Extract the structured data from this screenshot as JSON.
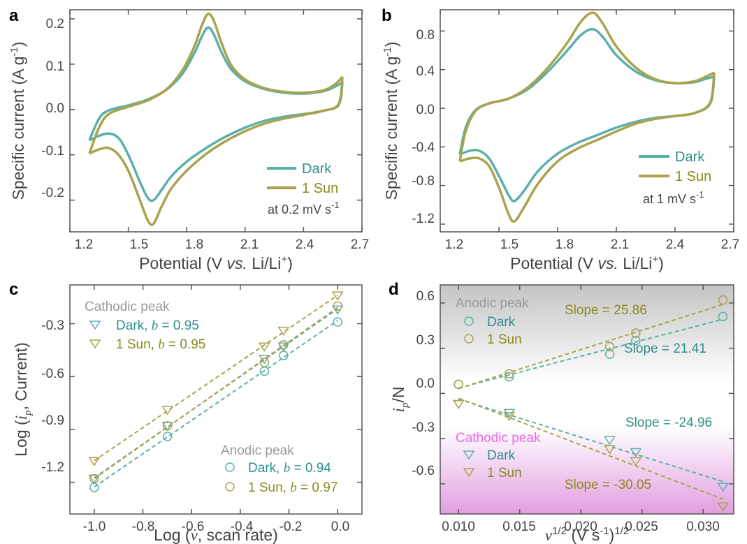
{
  "colors": {
    "dark": "#5BB0AC",
    "sun": "#ABA24D",
    "dark_text": "#2E8F8B",
    "sun_text": "#8A8A1E",
    "gray_text": "#9A9A9A",
    "magenta_text": "#E86AE8",
    "axis": "#555555"
  },
  "panels": {
    "a": {
      "label": "a",
      "xlabel_pre": "Potential (V ",
      "xlabel_it": "vs.",
      "xlabel_post": " Li/Li",
      "xlabel_sup": "+",
      "xlabel_end": ")",
      "ylabel_pre": "Specific current (A g",
      "ylabel_sup": "-1",
      "ylabel_end": ")",
      "xticks": [
        "1.2",
        "1.5",
        "1.8",
        "2.1",
        "2.4",
        "2.7"
      ],
      "yticks": [
        "0.2",
        "0.1",
        "0.0",
        "-0.1",
        "-0.2"
      ],
      "legend": [
        "Dark",
        "1 Sun"
      ],
      "note_pre": "at 0.2 mV s",
      "note_sup": "-1"
    },
    "b": {
      "label": "b",
      "xlabel_pre": "Potential (V ",
      "xlabel_it": "vs.",
      "xlabel_post": " Li/Li",
      "xlabel_sup": "+",
      "xlabel_end": ")",
      "ylabel_pre": "Specific current (A g",
      "ylabel_sup": "-1",
      "ylabel_end": ")",
      "xticks": [
        "1.2",
        "1.5",
        "1.8",
        "2.1",
        "2.4",
        "2.7"
      ],
      "yticks": [
        "0.8",
        "0.4",
        "0.0",
        "-0.4",
        "-0.8",
        "-1.2"
      ],
      "legend": [
        "Dark",
        "1 Sun"
      ],
      "note_pre": "at 1 mV s",
      "note_sup": "-1"
    },
    "c": {
      "label": "c",
      "xlabel_pre": "Log (",
      "xlabel_it": "ν",
      "xlabel_post": ", scan rate)",
      "ylabel_pre": "Log (",
      "ylabel_it": "i",
      "ylabel_sub": "p",
      "ylabel_post": ", Current)",
      "xticks": [
        "-1.0",
        "-0.8",
        "-0.6",
        "-0.4",
        "-0.2",
        "0.0"
      ],
      "yticks": [
        "-0.3",
        "-0.6",
        "-0.9",
        "-1.2"
      ],
      "cathodic_title": "Cathodic peak",
      "cathodic_dark": "Dark,",
      "cathodic_dark_b": "= 0.95",
      "cathodic_sun": "1 Sun,",
      "cathodic_sun_b": "= 0.95",
      "anodic_title": "Anodic peak",
      "anodic_dark": "Dark,",
      "anodic_dark_b": "= 0.94",
      "anodic_sun": "1 Sun,",
      "anodic_sun_b": "= 0.97",
      "b_symbol": "b"
    },
    "d": {
      "label": "d",
      "xlabel_pre": "ν",
      "xlabel_sup": "1/2",
      "xlabel_mid": " (V s",
      "xlabel_sup2": "-1",
      "xlabel_end": ")",
      "xlabel_sup3": "1/2",
      "ylabel_it": "i",
      "ylabel_sub": "p",
      "ylabel_post": "/N",
      "xticks": [
        "0.010",
        "0.015",
        "0.020",
        "0.025",
        "0.030"
      ],
      "yticks": [
        "0.6",
        "0.3",
        "0.0",
        "-0.3",
        "-0.6"
      ],
      "anodic_title": "Anodic peak",
      "cathodic_title": "Cathodic peak",
      "legend": [
        "Dark",
        "1 Sun",
        "Dark",
        "1 Sun"
      ],
      "slopes": [
        "Slope = 25.86",
        "Slope = 21.41",
        "Slope = -24.96",
        "Slope = -30.05"
      ]
    }
  },
  "chart_data": [
    {
      "panel": "a",
      "type": "line",
      "xlabel": "Potential (V vs. Li/Li+)",
      "ylabel": "Specific current (A g-1)",
      "xlim": [
        1.2,
        2.7
      ],
      "ylim": [
        -0.27,
        0.22
      ],
      "series": [
        {
          "name": "Dark",
          "upper": [
            [
              1.3,
              -0.068
            ],
            [
              1.35,
              -0.02
            ],
            [
              1.4,
              -0.002
            ],
            [
              1.5,
              0.009
            ],
            [
              1.6,
              0.022
            ],
            [
              1.7,
              0.045
            ],
            [
              1.78,
              0.08
            ],
            [
              1.84,
              0.125
            ],
            [
              1.88,
              0.163
            ],
            [
              1.91,
              0.181
            ],
            [
              1.94,
              0.165
            ],
            [
              1.98,
              0.125
            ],
            [
              2.03,
              0.088
            ],
            [
              2.1,
              0.062
            ],
            [
              2.2,
              0.045
            ],
            [
              2.3,
              0.037
            ],
            [
              2.4,
              0.035
            ],
            [
              2.5,
              0.04
            ],
            [
              2.56,
              0.05
            ],
            [
              2.6,
              0.06
            ]
          ],
          "lower": [
            [
              2.6,
              0.06
            ],
            [
              2.58,
              0.01
            ],
            [
              2.5,
              -0.003
            ],
            [
              2.4,
              -0.01
            ],
            [
              2.3,
              -0.016
            ],
            [
              2.2,
              -0.025
            ],
            [
              2.1,
              -0.04
            ],
            [
              2.0,
              -0.06
            ],
            [
              1.9,
              -0.085
            ],
            [
              1.8,
              -0.115
            ],
            [
              1.72,
              -0.148
            ],
            [
              1.67,
              -0.178
            ],
            [
              1.63,
              -0.2
            ],
            [
              1.6,
              -0.195
            ],
            [
              1.56,
              -0.16
            ],
            [
              1.5,
              -0.1
            ],
            [
              1.45,
              -0.063
            ],
            [
              1.4,
              -0.053
            ],
            [
              1.35,
              -0.058
            ],
            [
              1.3,
              -0.068
            ]
          ]
        },
        {
          "name": "1 Sun",
          "upper": [
            [
              1.3,
              -0.097
            ],
            [
              1.35,
              -0.04
            ],
            [
              1.4,
              -0.01
            ],
            [
              1.5,
              0.006
            ],
            [
              1.6,
              0.02
            ],
            [
              1.7,
              0.046
            ],
            [
              1.78,
              0.088
            ],
            [
              1.84,
              0.14
            ],
            [
              1.88,
              0.188
            ],
            [
              1.91,
              0.211
            ],
            [
              1.94,
              0.195
            ],
            [
              1.98,
              0.145
            ],
            [
              2.03,
              0.097
            ],
            [
              2.1,
              0.066
            ],
            [
              2.2,
              0.047
            ],
            [
              2.3,
              0.039
            ],
            [
              2.4,
              0.037
            ],
            [
              2.5,
              0.042
            ],
            [
              2.56,
              0.055
            ],
            [
              2.6,
              0.072
            ]
          ],
          "lower": [
            [
              2.6,
              0.072
            ],
            [
              2.58,
              0.012
            ],
            [
              2.5,
              -0.003
            ],
            [
              2.4,
              -0.012
            ],
            [
              2.3,
              -0.02
            ],
            [
              2.2,
              -0.031
            ],
            [
              2.1,
              -0.048
            ],
            [
              2.0,
              -0.07
            ],
            [
              1.9,
              -0.098
            ],
            [
              1.8,
              -0.135
            ],
            [
              1.72,
              -0.175
            ],
            [
              1.67,
              -0.215
            ],
            [
              1.63,
              -0.252
            ],
            [
              1.6,
              -0.245
            ],
            [
              1.56,
              -0.2
            ],
            [
              1.5,
              -0.135
            ],
            [
              1.45,
              -0.1
            ],
            [
              1.4,
              -0.085
            ],
            [
              1.35,
              -0.088
            ],
            [
              1.3,
              -0.097
            ]
          ]
        }
      ],
      "legend": [
        "Dark",
        "1 Sun"
      ]
    },
    {
      "panel": "b",
      "type": "line",
      "xlabel": "Potential (V vs. Li/Li+)",
      "ylabel": "Specific current (A g-1)",
      "xlim": [
        1.2,
        2.7
      ],
      "ylim": [
        -1.28,
        1.02
      ],
      "series": [
        {
          "name": "Dark",
          "upper": [
            [
              1.3,
              -0.48
            ],
            [
              1.33,
              -0.2
            ],
            [
              1.38,
              -0.02
            ],
            [
              1.45,
              0.05
            ],
            [
              1.55,
              0.1
            ],
            [
              1.65,
              0.2
            ],
            [
              1.75,
              0.38
            ],
            [
              1.85,
              0.6
            ],
            [
              1.92,
              0.76
            ],
            [
              1.98,
              0.82
            ],
            [
              2.03,
              0.74
            ],
            [
              2.1,
              0.55
            ],
            [
              2.2,
              0.38
            ],
            [
              2.3,
              0.29
            ],
            [
              2.4,
              0.26
            ],
            [
              2.5,
              0.27
            ],
            [
              2.55,
              0.3
            ],
            [
              2.6,
              0.33
            ]
          ],
          "lower": [
            [
              2.6,
              0.33
            ],
            [
              2.58,
              0.05
            ],
            [
              2.5,
              -0.05
            ],
            [
              2.4,
              -0.08
            ],
            [
              2.3,
              -0.1
            ],
            [
              2.2,
              -0.14
            ],
            [
              2.1,
              -0.2
            ],
            [
              2.0,
              -0.28
            ],
            [
              1.9,
              -0.36
            ],
            [
              1.8,
              -0.47
            ],
            [
              1.7,
              -0.65
            ],
            [
              1.63,
              -0.85
            ],
            [
              1.58,
              -0.96
            ],
            [
              1.55,
              -0.9
            ],
            [
              1.5,
              -0.7
            ],
            [
              1.45,
              -0.52
            ],
            [
              1.4,
              -0.44
            ],
            [
              1.35,
              -0.44
            ],
            [
              1.3,
              -0.48
            ]
          ]
        },
        {
          "name": "1 Sun",
          "upper": [
            [
              1.3,
              -0.55
            ],
            [
              1.33,
              -0.24
            ],
            [
              1.38,
              -0.03
            ],
            [
              1.45,
              0.05
            ],
            [
              1.55,
              0.1
            ],
            [
              1.65,
              0.22
            ],
            [
              1.75,
              0.42
            ],
            [
              1.85,
              0.68
            ],
            [
              1.92,
              0.9
            ],
            [
              1.98,
              0.99
            ],
            [
              2.03,
              0.88
            ],
            [
              2.1,
              0.64
            ],
            [
              2.2,
              0.42
            ],
            [
              2.3,
              0.3
            ],
            [
              2.4,
              0.26
            ],
            [
              2.5,
              0.28
            ],
            [
              2.55,
              0.32
            ],
            [
              2.6,
              0.37
            ]
          ],
          "lower": [
            [
              2.6,
              0.37
            ],
            [
              2.58,
              0.06
            ],
            [
              2.5,
              -0.05
            ],
            [
              2.4,
              -0.08
            ],
            [
              2.3,
              -0.11
            ],
            [
              2.2,
              -0.16
            ],
            [
              2.1,
              -0.24
            ],
            [
              2.0,
              -0.33
            ],
            [
              1.9,
              -0.42
            ],
            [
              1.8,
              -0.55
            ],
            [
              1.7,
              -0.78
            ],
            [
              1.63,
              -1.02
            ],
            [
              1.58,
              -1.17
            ],
            [
              1.55,
              -1.1
            ],
            [
              1.5,
              -0.82
            ],
            [
              1.45,
              -0.6
            ],
            [
              1.4,
              -0.52
            ],
            [
              1.35,
              -0.52
            ],
            [
              1.3,
              -0.55
            ]
          ]
        }
      ],
      "legend": [
        "Dark",
        "1 Sun"
      ]
    },
    {
      "panel": "c",
      "type": "scatter",
      "xlabel": "Log (ν, scan rate)",
      "ylabel": "Log (ip, Current)",
      "xlim": [
        -1.1,
        0.1
      ],
      "ylim": [
        -1.38,
        -0.08
      ],
      "x": [
        -1.0,
        -0.699,
        -0.301,
        -0.222,
        0.0
      ],
      "series": [
        {
          "name": "Cathodic Dark, b = 0.95",
          "marker": "triangle",
          "y": [
            -1.18,
            -0.88,
            -0.5,
            -0.43,
            -0.22
          ]
        },
        {
          "name": "Cathodic 1 Sun, b = 0.95",
          "marker": "triangle",
          "y": [
            -1.08,
            -0.79,
            -0.43,
            -0.34,
            -0.14
          ]
        },
        {
          "name": "Anodic Dark, b = 0.94",
          "marker": "circle",
          "y": [
            -1.23,
            -0.94,
            -0.57,
            -0.48,
            -0.29
          ]
        },
        {
          "name": "Anodic 1 Sun, b = 0.97",
          "marker": "circle",
          "y": [
            -1.18,
            -0.88,
            -0.52,
            -0.42,
            -0.2
          ]
        }
      ]
    },
    {
      "panel": "d",
      "type": "scatter",
      "xlabel": "ν1/2 (V s-1)1/2",
      "ylabel": "ip/N",
      "xlim": [
        0.0085,
        0.0325
      ],
      "ylim": [
        -0.8,
        0.72
      ],
      "x": [
        0.01,
        0.01414,
        0.02236,
        0.02449,
        0.03162
      ],
      "series": [
        {
          "name": "Anodic Dark",
          "marker": "circle",
          "slope": 21.41,
          "y": [
            0.06,
            0.11,
            0.26,
            0.35,
            0.51
          ]
        },
        {
          "name": "Anodic 1 Sun",
          "marker": "circle",
          "slope": 25.86,
          "y": [
            0.06,
            0.13,
            0.31,
            0.4,
            0.62
          ]
        },
        {
          "name": "Cathodic Dark",
          "marker": "triangle",
          "slope": -24.96,
          "y": [
            -0.07,
            -0.13,
            -0.31,
            -0.39,
            -0.62
          ]
        },
        {
          "name": "Cathodic 1 Sun",
          "marker": "triangle",
          "slope": -30.05,
          "y": [
            -0.07,
            -0.15,
            -0.37,
            -0.45,
            -0.75
          ]
        }
      ]
    }
  ]
}
